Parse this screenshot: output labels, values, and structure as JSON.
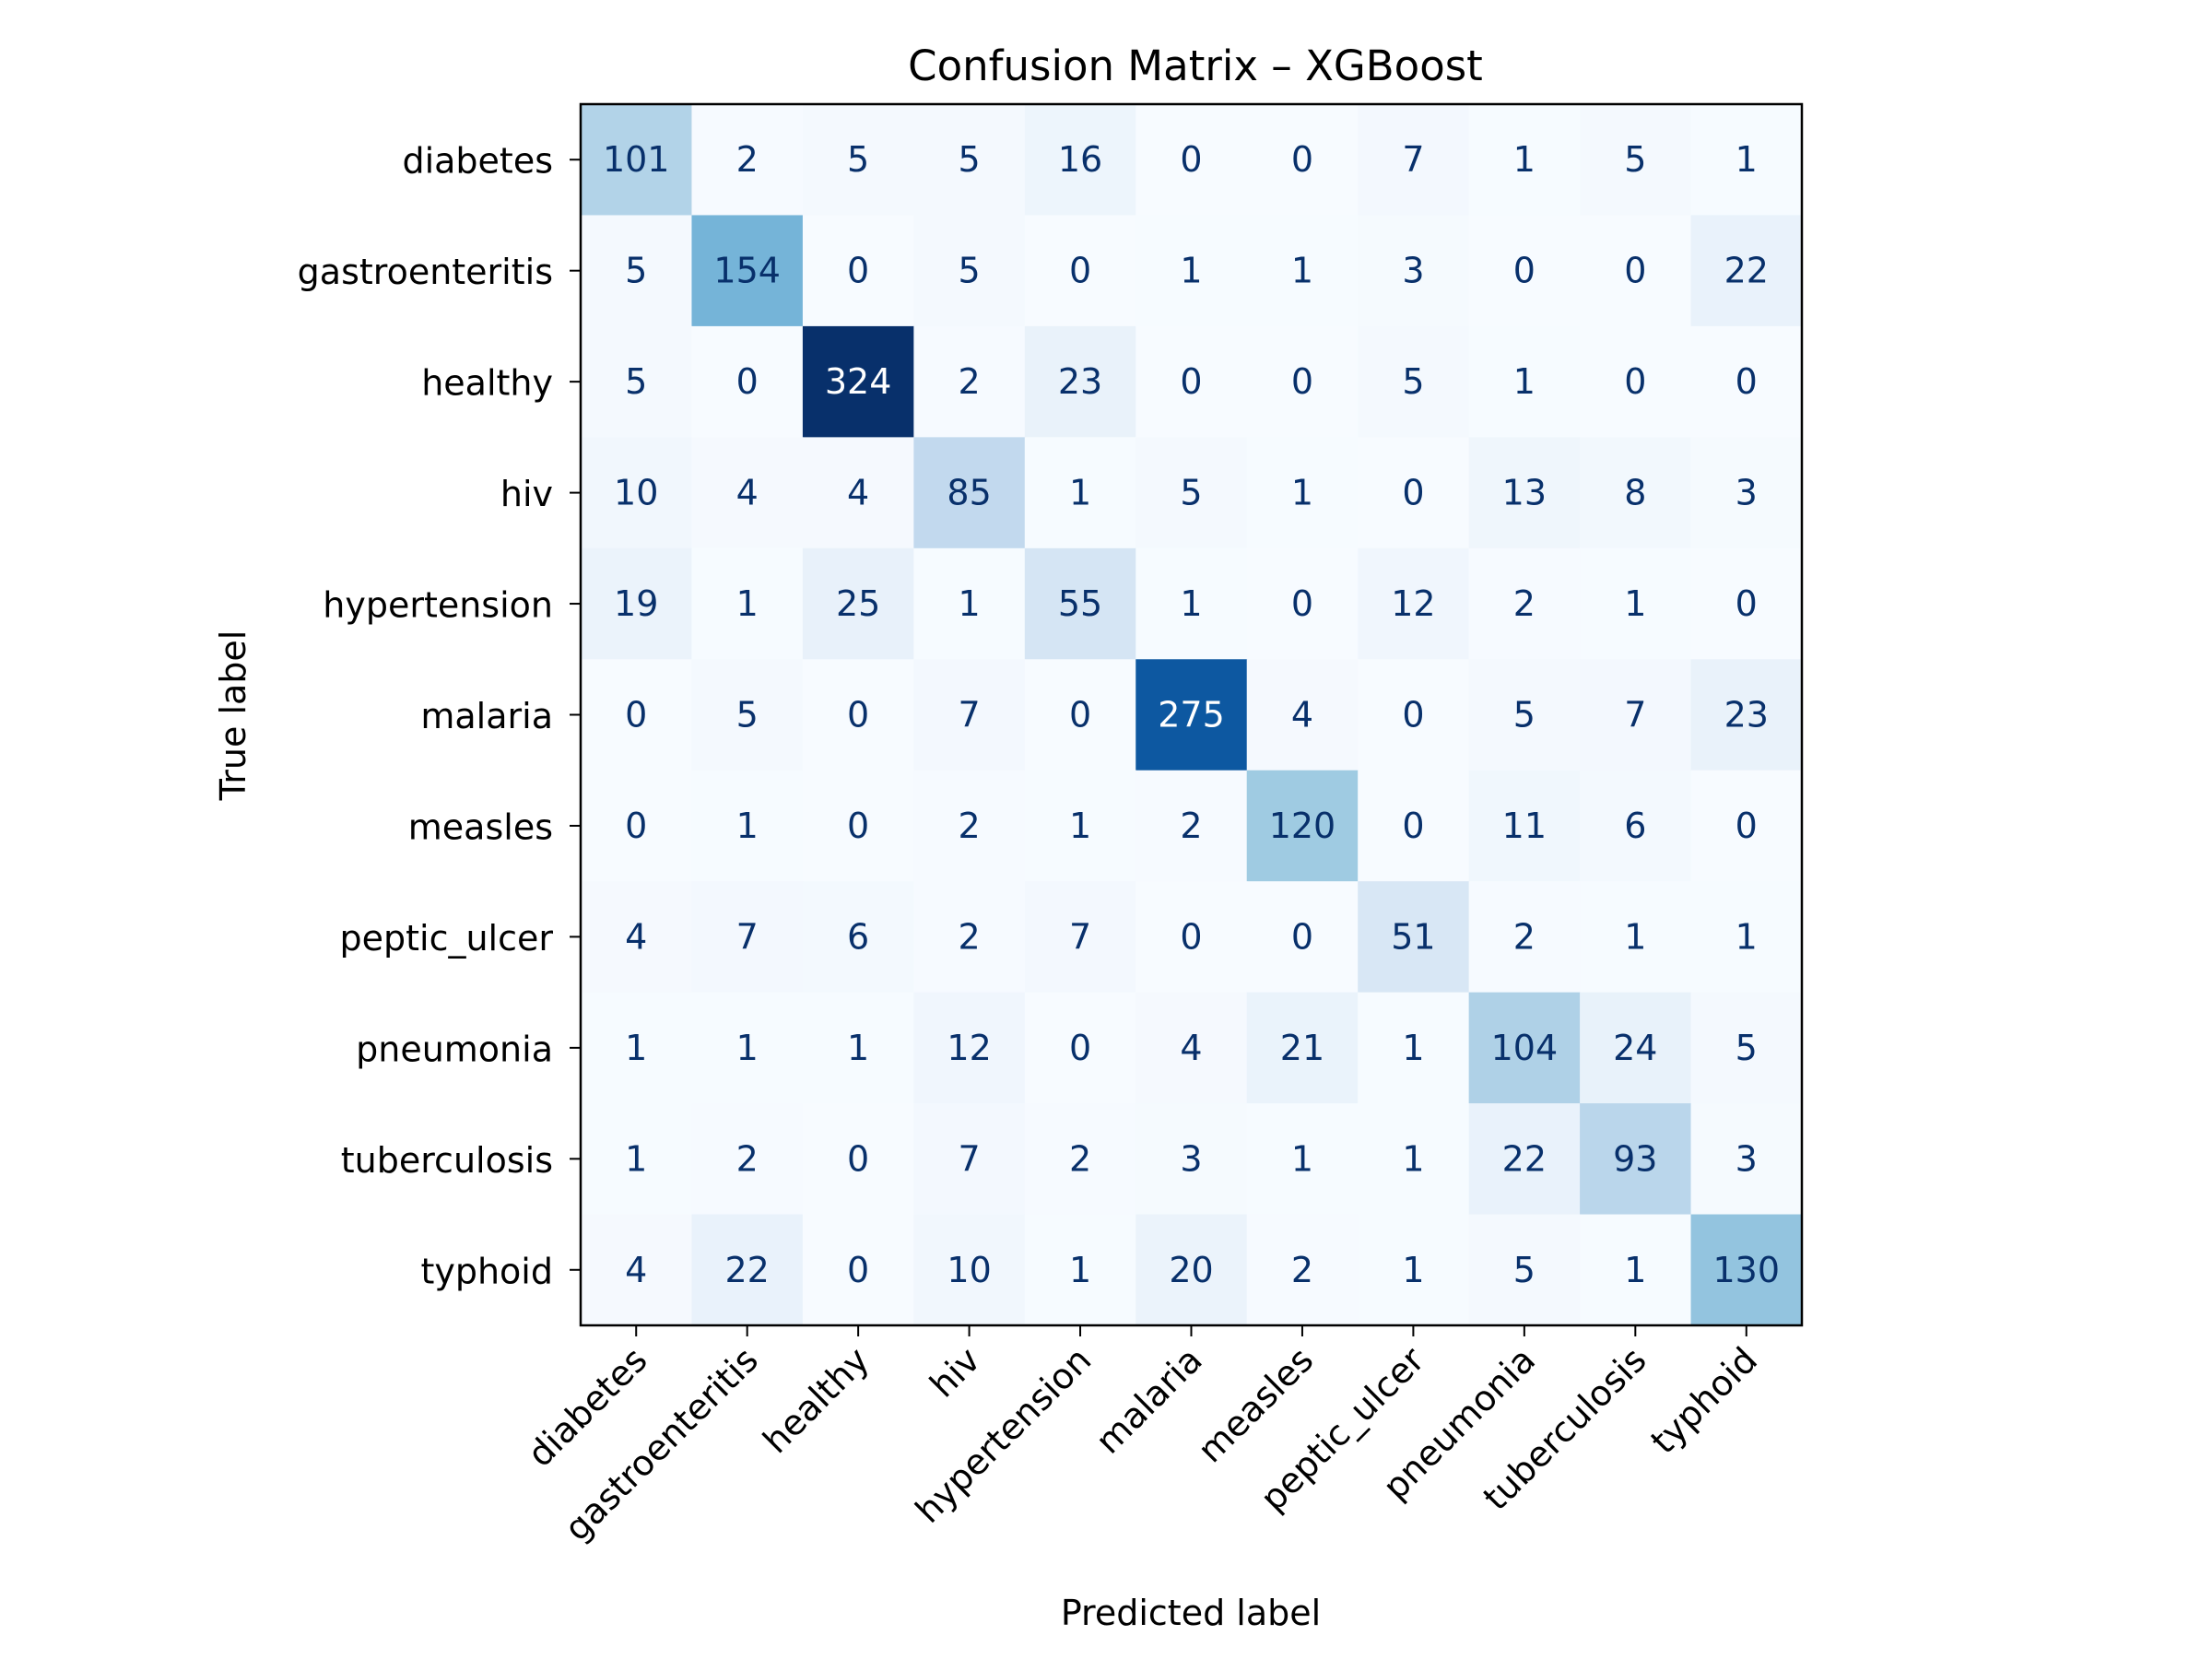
{
  "chart_data": {
    "type": "heatmap",
    "title": "Confusion Matrix – XGBoost",
    "xlabel": "Predicted label",
    "ylabel": "True label",
    "colormap": "Blues",
    "colorbar": false,
    "text_dark_color": "#08306b",
    "text_light_color": "#ffffff",
    "categories": [
      "diabetes",
      "gastroenteritis",
      "healthy",
      "hiv",
      "hypertension",
      "malaria",
      "measles",
      "peptic_ulcer",
      "pneumonia",
      "tuberculosis",
      "typhoid"
    ],
    "matrix": [
      [
        101,
        2,
        5,
        5,
        16,
        0,
        0,
        7,
        1,
        5,
        1
      ],
      [
        5,
        154,
        0,
        5,
        0,
        1,
        1,
        3,
        0,
        0,
        22
      ],
      [
        5,
        0,
        324,
        2,
        23,
        0,
        0,
        5,
        1,
        0,
        0
      ],
      [
        10,
        4,
        4,
        85,
        1,
        5,
        1,
        0,
        13,
        8,
        3
      ],
      [
        19,
        1,
        25,
        1,
        55,
        1,
        0,
        12,
        2,
        1,
        0
      ],
      [
        0,
        5,
        0,
        7,
        0,
        275,
        4,
        0,
        5,
        7,
        23
      ],
      [
        0,
        1,
        0,
        2,
        1,
        2,
        120,
        0,
        11,
        6,
        0
      ],
      [
        4,
        7,
        6,
        2,
        7,
        0,
        0,
        51,
        2,
        1,
        1
      ],
      [
        1,
        1,
        1,
        12,
        0,
        4,
        21,
        1,
        104,
        24,
        5
      ],
      [
        1,
        2,
        0,
        7,
        2,
        3,
        1,
        1,
        22,
        93,
        3
      ],
      [
        4,
        22,
        0,
        10,
        1,
        20,
        2,
        1,
        5,
        1,
        130
      ]
    ],
    "value_range": [
      0,
      324
    ]
  }
}
